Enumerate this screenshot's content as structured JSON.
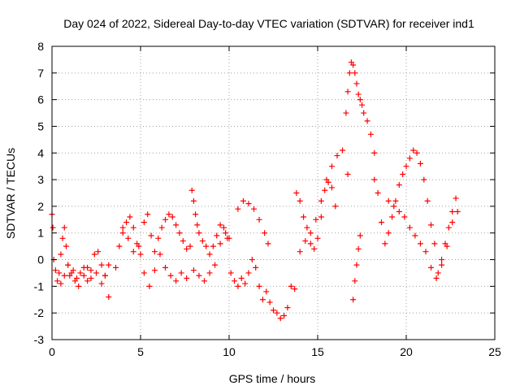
{
  "chart_data": {
    "type": "scatter",
    "title": "Day 024 of 2022, Sidereal Day-to-day VTEC variation (SDTVAR) for receiver ind1",
    "xlabel": "GPS time / hours",
    "ylabel": "SDTVAR / TECUs",
    "xlim": [
      0,
      25
    ],
    "ylim": [
      -3,
      8
    ],
    "xticks": [
      "0",
      "5",
      "10",
      "15",
      "20",
      "25"
    ],
    "yticks": [
      "-3",
      "-2",
      "-1",
      "0",
      "1",
      "2",
      "3",
      "4",
      "5",
      "6",
      "7",
      "8"
    ],
    "grid": true,
    "marker": "+",
    "color": "#ff0000",
    "series": [
      {
        "name": "SDTVAR",
        "x": [
          0.0,
          0.05,
          0.1,
          0.2,
          0.3,
          0.4,
          0.5,
          0.6,
          0.7,
          0.8,
          0.9,
          1.0,
          1.2,
          1.4,
          1.6,
          1.8,
          2.0,
          2.2,
          2.4,
          2.6,
          2.8,
          3.0,
          3.2,
          0.5,
          0.7,
          0.9,
          1.1,
          1.3,
          1.5,
          1.8,
          2.0,
          2.2,
          2.5,
          2.8,
          3.0,
          3.2,
          3.6,
          3.8,
          4.0,
          4.2,
          4.4,
          4.6,
          4.8,
          5.0,
          5.2,
          5.4,
          5.6,
          5.8,
          6.0,
          6.2,
          6.4,
          6.6,
          6.8,
          7.0,
          7.2,
          7.4,
          7.6,
          7.8,
          4.0,
          4.3,
          4.6,
          4.9,
          5.2,
          5.5,
          5.8,
          6.1,
          6.4,
          6.7,
          7.0,
          7.3,
          7.6,
          7.9,
          8.0,
          8.1,
          8.2,
          8.3,
          8.5,
          8.7,
          8.9,
          9.1,
          9.3,
          9.5,
          9.7,
          9.9,
          8.0,
          8.3,
          8.6,
          8.9,
          9.2,
          9.5,
          9.8,
          10.0,
          10.1,
          10.3,
          10.5,
          10.7,
          10.9,
          11.1,
          11.3,
          11.5,
          11.7,
          11.9,
          12.1,
          12.3,
          12.5,
          12.7,
          12.9,
          13.1,
          13.3,
          13.5,
          13.7,
          10.5,
          10.8,
          11.1,
          11.4,
          11.7,
          12.0,
          12.2,
          13.8,
          14.0,
          14.2,
          14.4,
          14.6,
          14.8,
          15.0,
          15.2,
          15.4,
          15.6,
          15.8,
          16.0,
          14.0,
          14.3,
          14.6,
          14.9,
          15.2,
          15.5,
          15.8,
          16.1,
          16.4,
          16.7,
          16.6,
          16.7,
          16.8,
          16.9,
          17.0,
          17.1,
          17.2,
          17.3,
          17.4,
          17.5,
          17.6,
          17.8,
          18.0,
          18.2,
          17.0,
          17.1,
          17.2,
          17.3,
          17.4,
          18.2,
          18.4,
          18.6,
          18.8,
          19.0,
          19.2,
          19.4,
          19.6,
          19.8,
          20.0,
          20.2,
          20.4,
          20.6,
          20.8,
          21.0,
          21.2,
          21.4,
          21.6,
          21.8,
          22.0,
          22.2,
          22.4,
          22.6,
          22.8,
          19.0,
          19.3,
          19.6,
          19.9,
          20.2,
          20.5,
          20.8,
          21.1,
          21.4,
          21.7,
          22.0,
          22.3,
          22.6,
          22.9
        ],
        "y": [
          1.7,
          1.2,
          0.0,
          -0.4,
          -0.8,
          -0.5,
          0.2,
          0.8,
          1.2,
          0.5,
          -0.2,
          -0.6,
          -0.4,
          -0.7,
          -0.5,
          -0.3,
          -0.8,
          -0.4,
          0.2,
          0.3,
          -0.2,
          -0.6,
          -1.4,
          -0.9,
          -0.6,
          -0.2,
          -0.5,
          -0.8,
          -1.0,
          -0.6,
          -0.3,
          -0.7,
          -0.5,
          -0.9,
          -0.6,
          -0.2,
          -0.3,
          0.5,
          1.0,
          1.4,
          1.6,
          1.2,
          0.6,
          0.2,
          1.4,
          1.7,
          0.9,
          0.3,
          0.8,
          1.2,
          1.5,
          1.7,
          1.6,
          1.3,
          1.0,
          0.7,
          0.4,
          0.5,
          1.2,
          0.8,
          0.3,
          0.5,
          -0.5,
          -1.0,
          -0.4,
          0.2,
          -0.3,
          -0.6,
          -0.8,
          -0.5,
          -0.7,
          2.6,
          2.2,
          1.7,
          1.3,
          1.0,
          0.7,
          0.5,
          0.2,
          0.5,
          0.9,
          1.3,
          1.2,
          0.8,
          -0.4,
          -0.6,
          -0.8,
          -0.5,
          -0.2,
          0.6,
          1.0,
          0.8,
          -0.5,
          -0.8,
          -1.0,
          -0.7,
          -0.9,
          -0.5,
          0.0,
          -0.3,
          -1.0,
          -1.5,
          -1.2,
          -1.6,
          -1.9,
          -2.0,
          -2.2,
          -2.1,
          -1.8,
          -1.0,
          -1.1,
          1.9,
          2.2,
          2.1,
          1.9,
          1.5,
          1.0,
          0.6,
          2.5,
          2.2,
          1.6,
          1.2,
          0.6,
          0.4,
          0.8,
          1.6,
          2.6,
          2.9,
          2.7,
          2.0,
          0.3,
          0.7,
          1.0,
          1.5,
          2.2,
          3.0,
          3.5,
          3.9,
          4.1,
          3.2,
          5.5,
          6.3,
          7.0,
          7.4,
          7.3,
          7.0,
          6.6,
          6.2,
          6.0,
          5.8,
          5.5,
          5.2,
          4.7,
          4.0,
          -1.5,
          -0.8,
          -0.2,
          0.4,
          0.9,
          3.0,
          2.5,
          1.4,
          0.6,
          1.0,
          1.6,
          2.2,
          2.8,
          3.2,
          3.5,
          3.8,
          4.1,
          4.0,
          3.6,
          3.0,
          2.2,
          1.3,
          0.6,
          -0.5,
          0.0,
          0.6,
          1.2,
          1.8,
          2.3,
          2.2,
          2.0,
          1.8,
          1.6,
          1.2,
          0.9,
          0.6,
          0.3,
          -0.3,
          -0.7,
          -0.2,
          0.5,
          1.4,
          1.8
        ]
      }
    ]
  }
}
